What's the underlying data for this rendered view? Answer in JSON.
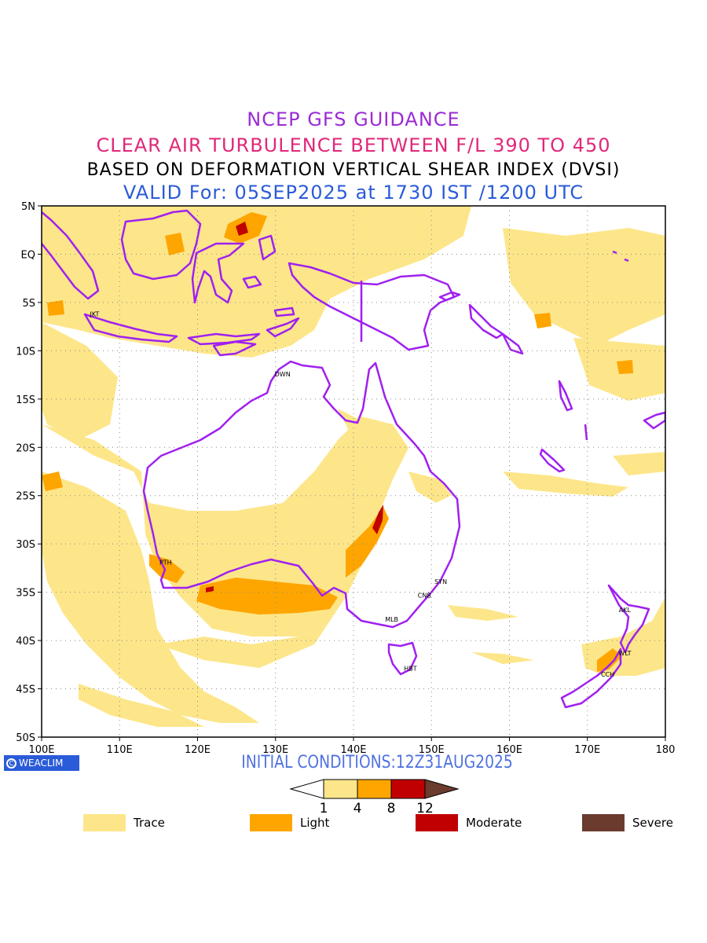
{
  "header": {
    "line1": "NCEP GFS GUIDANCE",
    "line2": "CLEAR AIR TURBULENCE BETWEEN F/L 390 TO 450",
    "line3": "BASED ON DEFORMATION VERTICAL SHEAR INDEX (DVSI)",
    "line4": "VALID For: 05SEP2025 at 1730 IST /1200 UTC"
  },
  "colors": {
    "line1": "#9b2bd6",
    "line2": "#e0287a",
    "line3": "#000000",
    "line4": "#2a5bd8",
    "coast": "#a020f0",
    "trace": "#fde68a",
    "light": "#ffa500",
    "moderate": "#c00000",
    "severe": "#6b3b2e"
  },
  "map": {
    "lat_labels": [
      "5N",
      "EQ",
      "5S",
      "10S",
      "15S",
      "20S",
      "25S",
      "30S",
      "35S",
      "40S",
      "45S",
      "50S"
    ],
    "lon_labels": [
      "100E",
      "110E",
      "120E",
      "130E",
      "140E",
      "150E",
      "160E",
      "170E",
      "180"
    ],
    "cities": [
      {
        "code": "JKT",
        "lon": 106.8,
        "lat": -6.2
      },
      {
        "code": "DWN",
        "lon": 130.9,
        "lat": -12.4
      },
      {
        "code": "PTH",
        "lon": 115.9,
        "lat": -31.9
      },
      {
        "code": "SYN",
        "lon": 151.2,
        "lat": -33.9
      },
      {
        "code": "CNB",
        "lon": 149.1,
        "lat": -35.3
      },
      {
        "code": "MLB",
        "lon": 144.9,
        "lat": -37.8
      },
      {
        "code": "HBT",
        "lon": 147.3,
        "lat": -42.9
      },
      {
        "code": "AKL",
        "lon": 174.8,
        "lat": -36.8
      },
      {
        "code": "WLT",
        "lon": 174.8,
        "lat": -41.3
      },
      {
        "code": "CCH",
        "lon": 172.6,
        "lat": -43.5
      }
    ]
  },
  "footer": {
    "brand": "WEACLIM",
    "initial_conditions": "INITIAL CONDITIONS:12Z31AUG2025"
  },
  "colorbar": {
    "ticks": [
      "1",
      "4",
      "8",
      "12"
    ]
  },
  "legend": [
    {
      "label": "Trace",
      "color": "#fde68a"
    },
    {
      "label": "Light",
      "color": "#ffa500"
    },
    {
      "label": "Moderate",
      "color": "#c00000"
    },
    {
      "label": "Severe",
      "color": "#6b3b2e"
    }
  ]
}
